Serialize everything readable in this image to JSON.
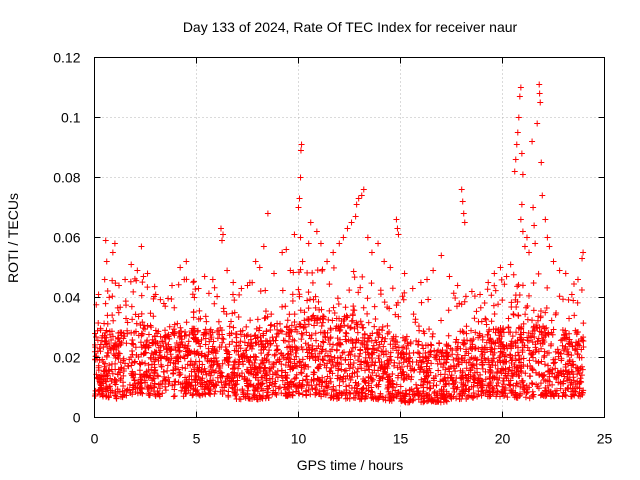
{
  "chart_data": {
    "type": "scatter",
    "title": "Day 133 of 2024, Rate Of TEC Index for receiver naur",
    "xlabel": "GPS time / hours",
    "ylabel": "ROTI / TECUs",
    "xlim": [
      0,
      25
    ],
    "ylim": [
      0,
      0.12
    ],
    "x_ticks": [
      "0",
      "5",
      "10",
      "15",
      "20",
      "25"
    ],
    "y_ticks": [
      "0",
      "0.02",
      "0.04",
      "0.06",
      "0.08",
      "0.1",
      "0.12"
    ],
    "grid": true,
    "marker": "+",
    "color": "#ff0000",
    "series": [
      {
        "band": [
          {
            "x": 0.0,
            "lo": 0.007,
            "hi": 0.03
          },
          {
            "x": 1.0,
            "lo": 0.006,
            "hi": 0.028
          },
          {
            "x": 2.0,
            "lo": 0.008,
            "hi": 0.029
          },
          {
            "x": 3.0,
            "lo": 0.007,
            "hi": 0.027
          },
          {
            "x": 4.0,
            "lo": 0.007,
            "hi": 0.028
          },
          {
            "x": 5.0,
            "lo": 0.007,
            "hi": 0.029
          },
          {
            "x": 6.0,
            "lo": 0.008,
            "hi": 0.029
          },
          {
            "x": 7.0,
            "lo": 0.006,
            "hi": 0.027
          },
          {
            "x": 8.0,
            "lo": 0.006,
            "hi": 0.027
          },
          {
            "x": 9.0,
            "lo": 0.007,
            "hi": 0.028
          },
          {
            "x": 10.0,
            "lo": 0.007,
            "hi": 0.032
          },
          {
            "x": 11.0,
            "lo": 0.007,
            "hi": 0.033
          },
          {
            "x": 12.0,
            "lo": 0.006,
            "hi": 0.032
          },
          {
            "x": 13.0,
            "lo": 0.006,
            "hi": 0.031
          },
          {
            "x": 14.0,
            "lo": 0.006,
            "hi": 0.03
          },
          {
            "x": 15.0,
            "lo": 0.005,
            "hi": 0.026
          },
          {
            "x": 16.0,
            "lo": 0.005,
            "hi": 0.024
          },
          {
            "x": 17.0,
            "lo": 0.005,
            "hi": 0.024
          },
          {
            "x": 18.0,
            "lo": 0.006,
            "hi": 0.025
          },
          {
            "x": 19.0,
            "lo": 0.007,
            "hi": 0.027
          },
          {
            "x": 20.0,
            "lo": 0.007,
            "hi": 0.029
          },
          {
            "x": 21.0,
            "lo": 0.006,
            "hi": 0.033
          },
          {
            "x": 22.0,
            "lo": 0.007,
            "hi": 0.03
          },
          {
            "x": 23.0,
            "lo": 0.007,
            "hi": 0.028
          },
          {
            "x": 24.0,
            "lo": 0.007,
            "hi": 0.027
          }
        ],
        "points": [
          [
            0.2,
            0.041
          ],
          [
            0.5,
            0.046
          ],
          [
            0.6,
            0.052
          ],
          [
            0.55,
            0.059
          ],
          [
            0.9,
            0.055
          ],
          [
            1.0,
            0.058
          ],
          [
            1.2,
            0.044
          ],
          [
            1.5,
            0.046
          ],
          [
            1.8,
            0.051
          ],
          [
            2.1,
            0.049
          ],
          [
            2.3,
            0.057
          ],
          [
            2.4,
            0.047
          ],
          [
            2.6,
            0.048
          ],
          [
            3.0,
            0.041
          ],
          [
            3.4,
            0.038
          ],
          [
            3.8,
            0.044
          ],
          [
            4.2,
            0.05
          ],
          [
            4.5,
            0.052
          ],
          [
            4.4,
            0.046
          ],
          [
            5.1,
            0.043
          ],
          [
            5.4,
            0.047
          ],
          [
            5.8,
            0.046
          ],
          [
            6.2,
            0.063
          ],
          [
            6.3,
            0.061
          ],
          [
            6.25,
            0.059
          ],
          [
            6.5,
            0.049
          ],
          [
            6.8,
            0.045
          ],
          [
            7.2,
            0.043
          ],
          [
            7.5,
            0.044
          ],
          [
            7.9,
            0.052
          ],
          [
            8.1,
            0.05
          ],
          [
            8.3,
            0.057
          ],
          [
            8.5,
            0.068
          ],
          [
            8.8,
            0.048
          ],
          [
            9.2,
            0.055
          ],
          [
            9.4,
            0.056
          ],
          [
            9.6,
            0.049
          ],
          [
            9.8,
            0.061
          ],
          [
            10.0,
            0.07
          ],
          [
            10.05,
            0.073
          ],
          [
            10.1,
            0.08
          ],
          [
            10.12,
            0.089
          ],
          [
            10.15,
            0.091
          ],
          [
            10.1,
            0.06
          ],
          [
            10.2,
            0.052
          ],
          [
            10.5,
            0.058
          ],
          [
            10.6,
            0.065
          ],
          [
            10.9,
            0.062
          ],
          [
            11.1,
            0.058
          ],
          [
            11.4,
            0.052
          ],
          [
            11.7,
            0.055
          ],
          [
            12.0,
            0.058
          ],
          [
            12.2,
            0.06
          ],
          [
            12.4,
            0.063
          ],
          [
            12.6,
            0.065
          ],
          [
            12.8,
            0.067
          ],
          [
            12.85,
            0.071
          ],
          [
            12.95,
            0.073
          ],
          [
            13.1,
            0.074
          ],
          [
            13.2,
            0.076
          ],
          [
            13.4,
            0.06
          ],
          [
            13.6,
            0.055
          ],
          [
            13.9,
            0.058
          ],
          [
            14.2,
            0.052
          ],
          [
            14.5,
            0.05
          ],
          [
            14.8,
            0.066
          ],
          [
            14.85,
            0.063
          ],
          [
            14.9,
            0.061
          ],
          [
            15.2,
            0.048
          ],
          [
            15.6,
            0.043
          ],
          [
            16.0,
            0.045
          ],
          [
            16.3,
            0.046
          ],
          [
            16.6,
            0.049
          ],
          [
            17.0,
            0.054
          ],
          [
            17.4,
            0.047
          ],
          [
            17.8,
            0.044
          ],
          [
            18.0,
            0.076
          ],
          [
            18.05,
            0.072
          ],
          [
            18.1,
            0.068
          ],
          [
            18.15,
            0.065
          ],
          [
            18.5,
            0.042
          ],
          [
            18.9,
            0.041
          ],
          [
            19.3,
            0.045
          ],
          [
            19.6,
            0.048
          ],
          [
            19.9,
            0.05
          ],
          [
            20.2,
            0.047
          ],
          [
            20.4,
            0.051
          ],
          [
            20.6,
            0.082
          ],
          [
            20.65,
            0.086
          ],
          [
            20.7,
            0.091
          ],
          [
            20.75,
            0.095
          ],
          [
            20.8,
            0.1
          ],
          [
            20.85,
            0.107
          ],
          [
            20.9,
            0.11
          ],
          [
            20.95,
            0.088
          ],
          [
            21.0,
            0.081
          ],
          [
            20.95,
            0.071
          ],
          [
            20.9,
            0.066
          ],
          [
            21.0,
            0.062
          ],
          [
            21.1,
            0.057
          ],
          [
            21.2,
            0.06
          ],
          [
            21.3,
            0.055
          ],
          [
            21.45,
            0.092
          ],
          [
            21.5,
            0.07
          ],
          [
            21.55,
            0.064
          ],
          [
            21.6,
            0.058
          ],
          [
            21.7,
            0.098
          ],
          [
            21.8,
            0.111
          ],
          [
            21.82,
            0.108
          ],
          [
            21.85,
            0.105
          ],
          [
            21.9,
            0.085
          ],
          [
            21.95,
            0.074
          ],
          [
            22.1,
            0.066
          ],
          [
            22.2,
            0.06
          ],
          [
            22.3,
            0.057
          ],
          [
            22.5,
            0.052
          ],
          [
            22.8,
            0.049
          ],
          [
            23.1,
            0.048
          ],
          [
            23.4,
            0.041
          ],
          [
            23.7,
            0.046
          ],
          [
            23.9,
            0.053
          ],
          [
            23.95,
            0.055
          ]
        ]
      }
    ]
  }
}
